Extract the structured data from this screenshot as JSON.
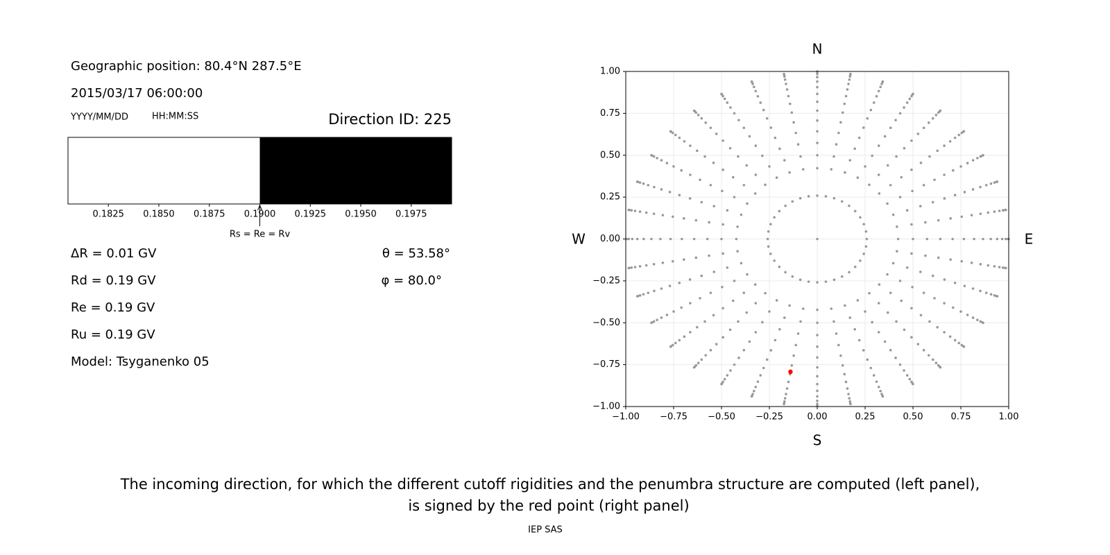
{
  "header": {
    "position": "Geographic position: 80.4°N 287.5°E",
    "datetime": "2015/03/17 06:00:00",
    "date_format": "YYYY/MM/DD",
    "time_format": "HH:MM:SS",
    "direction": "Direction ID: 225"
  },
  "penumbra": {
    "type": "bar",
    "xlim": [
      0.1805,
      0.1995
    ],
    "xticks": [
      {
        "value": 0.1825,
        "label": "0.1825"
      },
      {
        "value": 0.185,
        "label": "0.1850"
      },
      {
        "value": 0.1875,
        "label": "0.1875"
      },
      {
        "value": 0.19,
        "label": "0.1900"
      },
      {
        "value": 0.1925,
        "label": "0.1925"
      },
      {
        "value": 0.195,
        "label": "0.1950"
      },
      {
        "value": 0.1975,
        "label": "0.1975"
      }
    ],
    "segments": [
      {
        "start": 0.1805,
        "end": 0.19,
        "color": "#ffffff"
      },
      {
        "start": 0.19,
        "end": 0.1995,
        "color": "#000000"
      }
    ],
    "marker": {
      "value": 0.19,
      "label": "Rs = Re = Rv"
    }
  },
  "results": [
    "ΔR = 0.01 GV",
    "Rd = 0.19 GV",
    "Re = 0.19 GV",
    "Ru = 0.19 GV",
    "Model: Tsyganenko 05"
  ],
  "angles": [
    "θ = 53.58°",
    "φ = 80.0°"
  ],
  "chart_data": {
    "type": "scatter",
    "compass": {
      "north": "N",
      "south": "S",
      "west": "W",
      "east": "E"
    },
    "xlim": [
      -1,
      1
    ],
    "ylim": [
      -1,
      1
    ],
    "xticks": [
      {
        "value": -1,
        "label": "−1.00"
      },
      {
        "value": -0.75,
        "label": "−0.75"
      },
      {
        "value": -0.5,
        "label": "−0.50"
      },
      {
        "value": -0.25,
        "label": "−0.25"
      },
      {
        "value": 0,
        "label": "0.00"
      },
      {
        "value": 0.25,
        "label": "0.25"
      },
      {
        "value": 0.5,
        "label": "0.50"
      },
      {
        "value": 0.75,
        "label": "0.75"
      },
      {
        "value": 1,
        "label": "1.00"
      }
    ],
    "yticks": [
      {
        "value": -1,
        "label": "−1.00"
      },
      {
        "value": -0.75,
        "label": "−0.75"
      },
      {
        "value": -0.5,
        "label": "−0.50"
      },
      {
        "value": -0.25,
        "label": "−0.25"
      },
      {
        "value": 0,
        "label": "0.00"
      },
      {
        "value": 0.25,
        "label": "0.25"
      },
      {
        "value": 0.5,
        "label": "0.50"
      },
      {
        "value": 0.75,
        "label": "0.75"
      },
      {
        "value": 1,
        "label": "1.00"
      }
    ],
    "grid": true,
    "color": "#999999",
    "grid_points": {
      "zenith": [
        0,
        15,
        25,
        30,
        35,
        40,
        45,
        50,
        55,
        60,
        65,
        70,
        75,
        80,
        85,
        90
      ],
      "azimuth": [
        0,
        10,
        20,
        30,
        40,
        50,
        60,
        70,
        80,
        90,
        100,
        110,
        120,
        130,
        140,
        150,
        160,
        170,
        180,
        190,
        200,
        210,
        220,
        230,
        240,
        250,
        260,
        270,
        280,
        290,
        300,
        310,
        320,
        330,
        340,
        350
      ]
    },
    "highlight": {
      "zenith": 53.58,
      "azimuth": 80.0,
      "color": "#ff0000"
    }
  },
  "caption": [
    "The incoming direction, for which the different cutoff rigidities and the penumbra structure are computed (left panel),",
    "is signed by the red point (right panel)"
  ],
  "footer": "IEP SAS"
}
